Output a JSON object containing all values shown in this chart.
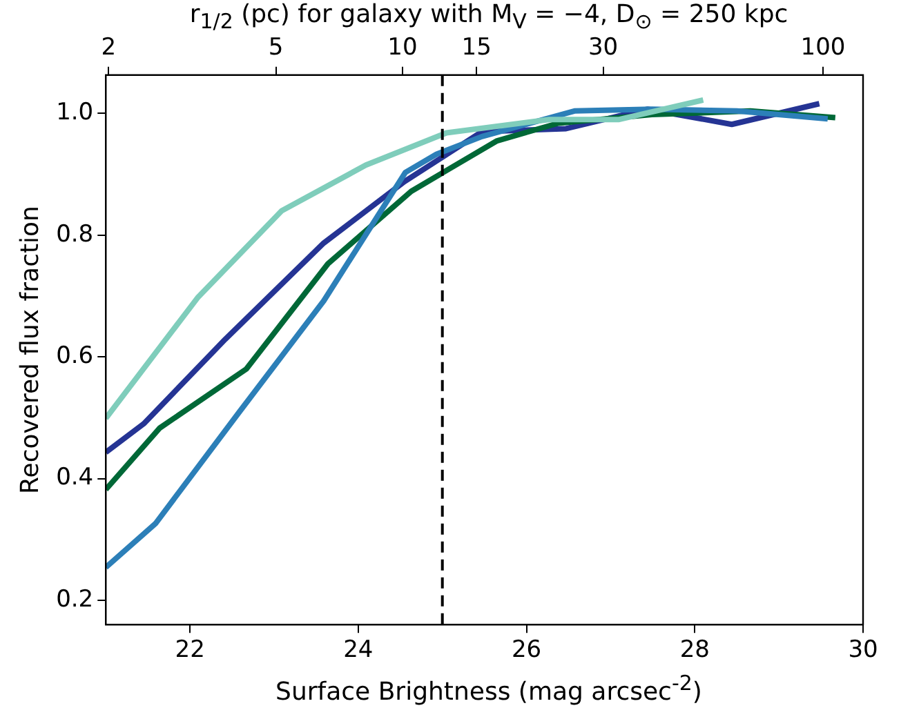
{
  "chart_data": {
    "type": "line",
    "xlabel": "Surface Brightness (mag arcsec$^{-2}$)",
    "ylabel": "Recovered flux fraction",
    "x2label": "r$_{1/2}$ (pc) for galaxy with M$_{V}$ = −4, D$_{⊙}$ = 250 kpc",
    "xlim": [
      21,
      30
    ],
    "xticks": [
      22,
      24,
      26,
      28,
      30
    ],
    "ylim": [
      0.16,
      1.063
    ],
    "yticks": [
      0.2,
      0.4,
      0.6,
      0.8,
      {
        "value": 1,
        "label": "1.0"
      }
    ],
    "x2lim": [
      1.97,
      124.5
    ],
    "x2ticks": [
      2,
      5,
      10,
      15,
      30,
      100
    ],
    "log": "x2",
    "grid": false,
    "legend": false,
    "line_style": "solid",
    "marker": "none",
    "ref_lines": [
      {
        "axis": "x",
        "value": 25,
        "color": "#000000",
        "line_style": "dashed"
      }
    ],
    "series": [
      {
        "color": "#7fcdbb",
        "x": [
          21.0,
          22.09,
          23.09,
          24.09,
          25.05,
          26.27,
          27.1,
          28.1
        ],
        "values": [
          0.499,
          0.697,
          0.84,
          0.915,
          0.968,
          0.99,
          0.99,
          1.022
        ]
      },
      {
        "color": "#2c7fb8",
        "x": [
          21.0,
          21.59,
          22.59,
          23.59,
          24.56,
          24.93,
          25.47,
          26.57,
          27.49,
          28.5,
          29.58
        ],
        "values": [
          0.254,
          0.326,
          0.51,
          0.692,
          0.903,
          0.933,
          0.962,
          1.004,
          1.007,
          1.004,
          0.991
        ]
      },
      {
        "color": "#006837",
        "x": [
          21.0,
          21.64,
          22.67,
          23.64,
          24.63,
          25.01,
          25.65,
          26.38,
          27.49,
          28.66,
          29.67
        ],
        "values": [
          0.382,
          0.483,
          0.58,
          0.753,
          0.872,
          0.903,
          0.955,
          0.984,
          0.998,
          1.004,
          0.993
        ]
      },
      {
        "color": "#253494",
        "x": [
          21.0,
          21.45,
          22.42,
          23.59,
          24.55,
          25.47,
          26.47,
          27.44,
          28.44,
          29.48
        ],
        "values": [
          0.443,
          0.49,
          0.629,
          0.787,
          0.888,
          0.97,
          0.975,
          1.007,
          0.982,
          1.016
        ]
      }
    ]
  }
}
